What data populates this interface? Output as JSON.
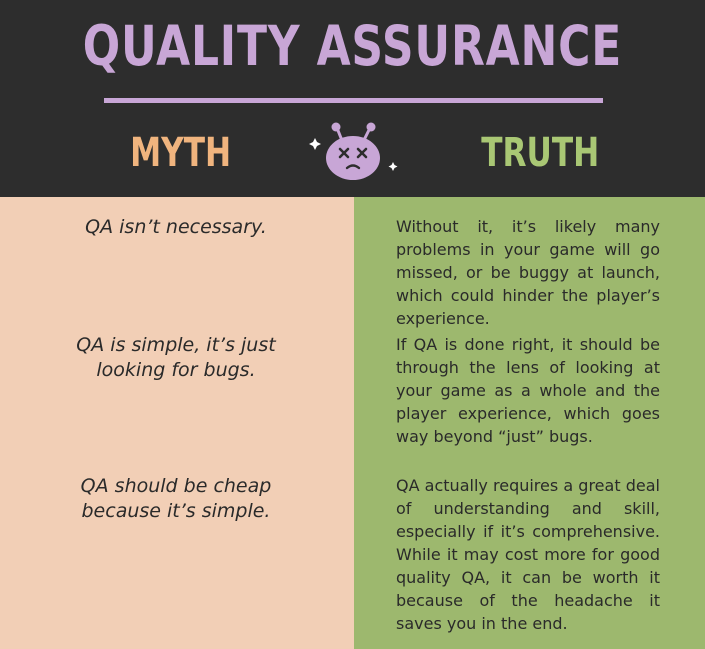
{
  "header": {
    "title": "QUALITY ASSURANCE",
    "myth_label": "MYTH",
    "truth_label": "TRUTH"
  },
  "colors": {
    "header_bg": "#2d2d2d",
    "title_purple": "#c8a6d6",
    "myth_orange": "#f0b47e",
    "truth_green": "#a9c774",
    "myth_panel": "#f2cfb6",
    "truth_panel": "#9db86e"
  },
  "mascot_icon": "dizzy-bug-face-icon",
  "rows": [
    {
      "myth": "QA isn’t necessary.",
      "truth": "Without it, it’s likely many problems in your game will go missed, or be buggy at launch, which could hinder the player’s experience."
    },
    {
      "myth": "QA is simple, it’s just looking for bugs.",
      "truth": "If QA is done right, it should be through the lens of looking at your game as a whole and the player experience, which goes way beyond “just” bugs."
    },
    {
      "myth": "QA should be cheap because it’s simple.",
      "truth": "QA actually requires a great deal of understanding and skill, especially if it’s comprehensive. While it may cost more for good quality QA, it can be worth it because of the headache it saves you in the end."
    }
  ]
}
